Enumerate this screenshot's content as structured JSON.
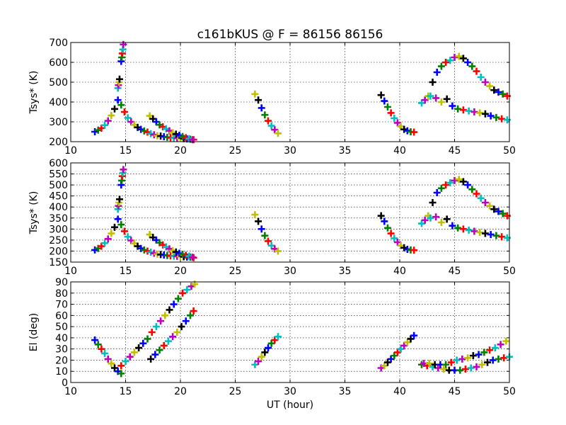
{
  "title": "c161bKUS @ F = 86156 86156",
  "palette": [
    "#0000ff",
    "#008000",
    "#ff0000",
    "#00bfbf",
    "#bf00bf",
    "#bfbf00",
    "#000000"
  ],
  "chart_data": [
    {
      "type": "scatter",
      "title": "c161bKUS @ F = 86156 86156",
      "xlabel": "",
      "ylabel": "Tsys* (K)",
      "xlim": [
        10,
        50
      ],
      "ylim": [
        200,
        700
      ],
      "xticks": [
        "10",
        "15",
        "20",
        "25",
        "30",
        "35",
        "40",
        "45",
        "50"
      ],
      "yticks": [
        "200",
        "300",
        "400",
        "500",
        "600",
        "700"
      ],
      "grid": true,
      "series": [
        {
          "x": [
            12.2,
            12.5,
            12.8,
            13.1,
            13.4,
            13.7,
            14.0,
            14.3,
            14.6,
            14.9,
            15.2,
            15.5,
            15.8,
            16.1,
            16.4,
            16.7,
            17.0,
            17.3,
            17.6,
            17.9,
            18.2,
            18.5,
            18.8,
            19.1,
            19.4,
            19.7,
            20.0,
            20.3,
            20.6,
            20.9,
            21.2
          ],
          "y": [
            250,
            258,
            268,
            283,
            305,
            332,
            365,
            410,
            385,
            350,
            320,
            300,
            285,
            272,
            262,
            254,
            248,
            240,
            235,
            230,
            228,
            225,
            222,
            220,
            218,
            217,
            216,
            215,
            214,
            212,
            210
          ]
        },
        {
          "x": [
            14.3,
            14.35,
            14.4,
            14.45
          ],
          "y": [
            470,
            485,
            500,
            515
          ]
        },
        {
          "x": [
            14.6,
            14.65,
            14.7,
            14.75,
            14.8
          ],
          "y": [
            605,
            625,
            645,
            665,
            690
          ]
        },
        {
          "x": [
            17.2,
            17.5,
            17.8,
            18.1,
            18.4,
            18.7,
            19.0,
            19.3,
            19.6,
            19.9,
            20.2,
            20.5,
            20.8,
            21.1
          ],
          "y": [
            330,
            315,
            300,
            285,
            275,
            265,
            255,
            245,
            238,
            232,
            226,
            220,
            215,
            210
          ]
        },
        {
          "x": [
            26.8,
            27.1,
            27.4,
            27.7,
            28.0,
            28.3,
            28.6,
            28.9
          ],
          "y": [
            440,
            410,
            370,
            335,
            305,
            280,
            260,
            242
          ]
        },
        {
          "x": [
            38.3,
            38.6,
            38.9,
            39.2,
            39.5,
            39.8,
            40.1,
            40.4,
            40.7,
            41.0,
            41.3
          ],
          "y": [
            435,
            405,
            375,
            345,
            318,
            295,
            277,
            262,
            255,
            250,
            248
          ]
        },
        {
          "x": [
            42.0,
            42.3,
            42.6,
            43.0,
            43.4,
            43.8,
            44.2,
            44.6,
            45.0,
            45.4,
            45.8,
            46.2,
            46.6,
            47.0,
            47.4,
            47.8,
            48.2,
            48.6,
            49.0,
            49.4,
            49.8
          ],
          "y": [
            395,
            410,
            430,
            500,
            550,
            580,
            600,
            610,
            625,
            630,
            620,
            600,
            580,
            555,
            525,
            500,
            480,
            460,
            450,
            440,
            430
          ]
        },
        {
          "x": [
            42.8,
            43.3,
            43.8,
            44.3,
            44.8,
            45.3,
            45.8,
            46.3,
            46.8,
            47.3,
            47.8,
            48.3,
            48.8,
            49.3,
            49.8
          ],
          "y": [
            430,
            420,
            400,
            415,
            380,
            365,
            360,
            355,
            350,
            345,
            340,
            330,
            322,
            315,
            310
          ]
        }
      ]
    },
    {
      "type": "scatter",
      "title": "",
      "xlabel": "",
      "ylabel": "Tsys* (K)",
      "xlim": [
        10,
        50
      ],
      "ylim": [
        150,
        600
      ],
      "xticks": [
        "10",
        "15",
        "20",
        "25",
        "30",
        "35",
        "40",
        "45",
        "50"
      ],
      "yticks": [
        "150",
        "200",
        "250",
        "300",
        "350",
        "400",
        "450",
        "500",
        "550",
        "600"
      ],
      "grid": true,
      "series": [
        {
          "x": [
            12.2,
            12.5,
            12.8,
            13.1,
            13.4,
            13.7,
            14.0,
            14.3,
            14.6,
            14.9,
            15.2,
            15.5,
            15.8,
            16.1,
            16.4,
            16.7,
            17.0,
            17.3,
            17.6,
            17.9,
            18.2,
            18.5,
            18.8,
            19.1,
            19.4,
            19.7,
            20.0,
            20.3,
            20.6,
            20.9,
            21.2
          ],
          "y": [
            205,
            212,
            222,
            236,
            255,
            280,
            308,
            345,
            320,
            290,
            265,
            248,
            235,
            222,
            212,
            205,
            200,
            195,
            190,
            186,
            184,
            182,
            180,
            178,
            177,
            176,
            175,
            174,
            173,
            172,
            170
          ]
        },
        {
          "x": [
            14.3,
            14.35,
            14.4,
            14.45
          ],
          "y": [
            390,
            405,
            420,
            435
          ]
        },
        {
          "x": [
            14.6,
            14.65,
            14.7,
            14.75,
            14.8
          ],
          "y": [
            500,
            520,
            540,
            555,
            570
          ]
        },
        {
          "x": [
            17.2,
            17.5,
            17.8,
            18.1,
            18.4,
            18.7,
            19.0,
            19.3,
            19.6,
            19.9,
            20.2,
            20.5,
            20.8,
            21.1
          ],
          "y": [
            275,
            262,
            250,
            238,
            228,
            219,
            210,
            202,
            196,
            190,
            185,
            181,
            177,
            172
          ]
        },
        {
          "x": [
            26.8,
            27.1,
            27.4,
            27.7,
            28.0,
            28.3,
            28.6,
            28.9
          ],
          "y": [
            365,
            335,
            300,
            270,
            245,
            225,
            210,
            200
          ]
        },
        {
          "x": [
            38.3,
            38.6,
            38.9,
            39.2,
            39.5,
            39.8,
            40.1,
            40.4,
            40.7,
            41.0,
            41.3
          ],
          "y": [
            360,
            335,
            305,
            280,
            258,
            240,
            225,
            215,
            208,
            205,
            204
          ]
        },
        {
          "x": [
            42.0,
            42.3,
            42.6,
            43.0,
            43.4,
            43.8,
            44.2,
            44.6,
            45.0,
            45.4,
            45.8,
            46.2,
            46.6,
            47.0,
            47.4,
            47.8,
            48.2,
            48.6,
            49.0,
            49.4,
            49.8
          ],
          "y": [
            325,
            340,
            360,
            420,
            465,
            485,
            500,
            510,
            520,
            525,
            515,
            500,
            480,
            460,
            440,
            420,
            405,
            390,
            380,
            370,
            360
          ]
        },
        {
          "x": [
            42.8,
            43.3,
            43.8,
            44.3,
            44.8,
            45.3,
            45.8,
            46.3,
            46.8,
            47.3,
            47.8,
            48.3,
            48.8,
            49.3,
            49.8
          ],
          "y": [
            350,
            355,
            330,
            345,
            315,
            305,
            300,
            295,
            290,
            285,
            280,
            275,
            270,
            265,
            260
          ]
        }
      ]
    },
    {
      "type": "scatter",
      "title": "",
      "xlabel": "UT (hour)",
      "ylabel": "El (deg)",
      "xlim": [
        10,
        50
      ],
      "ylim": [
        0,
        90
      ],
      "xticks": [
        "10",
        "15",
        "20",
        "25",
        "30",
        "35",
        "40",
        "45",
        "50"
      ],
      "yticks": [
        "0",
        "10",
        "20",
        "30",
        "40",
        "50",
        "60",
        "70",
        "80",
        "90"
      ],
      "grid": true,
      "series": [
        {
          "x": [
            12.2,
            12.5,
            12.8,
            13.1,
            13.4,
            13.7,
            14.0,
            14.3,
            14.6
          ],
          "y": [
            38,
            34,
            30,
            26,
            21,
            17,
            13,
            10,
            8
          ]
        },
        {
          "x": [
            14.6,
            15.0,
            15.4,
            15.8,
            16.2,
            16.6,
            17.0,
            17.4,
            17.8,
            18.2,
            18.6,
            19.0,
            19.4,
            19.8,
            20.2,
            20.6,
            21.0,
            21.3
          ],
          "y": [
            15,
            19,
            23,
            27,
            31,
            35,
            39,
            45,
            50,
            55,
            60,
            65,
            70,
            75,
            80,
            83,
            86,
            88
          ]
        },
        {
          "x": [
            17.3,
            17.7,
            18.1,
            18.5,
            18.9,
            19.3,
            19.7,
            20.1,
            20.5,
            20.9,
            21.2
          ],
          "y": [
            21,
            25,
            29,
            33,
            37,
            41,
            45,
            50,
            55,
            60,
            64
          ]
        },
        {
          "x": [
            26.8,
            27.1,
            27.4,
            27.7,
            28.0,
            28.3,
            28.6,
            28.9
          ],
          "y": [
            16,
            19,
            23,
            27,
            31,
            35,
            38,
            41
          ]
        },
        {
          "x": [
            38.3,
            38.6,
            38.9,
            39.2,
            39.5,
            39.8,
            40.1,
            40.4,
            40.7,
            41.0,
            41.3
          ],
          "y": [
            13,
            15,
            18,
            21,
            24,
            27,
            30,
            33,
            36,
            39,
            42
          ]
        },
        {
          "x": [
            42.0,
            42.5,
            43.0,
            43.5,
            44.0,
            44.5,
            45.0,
            45.5,
            46.0,
            46.5,
            47.0,
            47.5,
            48.0,
            48.5,
            49.0,
            49.5,
            50.0
          ],
          "y": [
            16,
            15,
            14,
            13,
            12,
            11,
            11,
            11,
            12,
            13,
            14,
            16,
            18,
            20,
            21,
            22,
            23
          ]
        },
        {
          "x": [
            42.2,
            42.7,
            43.2,
            43.7,
            44.2,
            44.7,
            45.2,
            45.7,
            46.2,
            46.7,
            47.2,
            47.7,
            48.2,
            48.7,
            49.2,
            49.7
          ],
          "y": [
            17,
            17,
            16,
            16,
            16,
            18,
            20,
            21,
            22,
            24,
            25,
            27,
            29,
            31,
            34,
            37
          ]
        }
      ]
    }
  ]
}
